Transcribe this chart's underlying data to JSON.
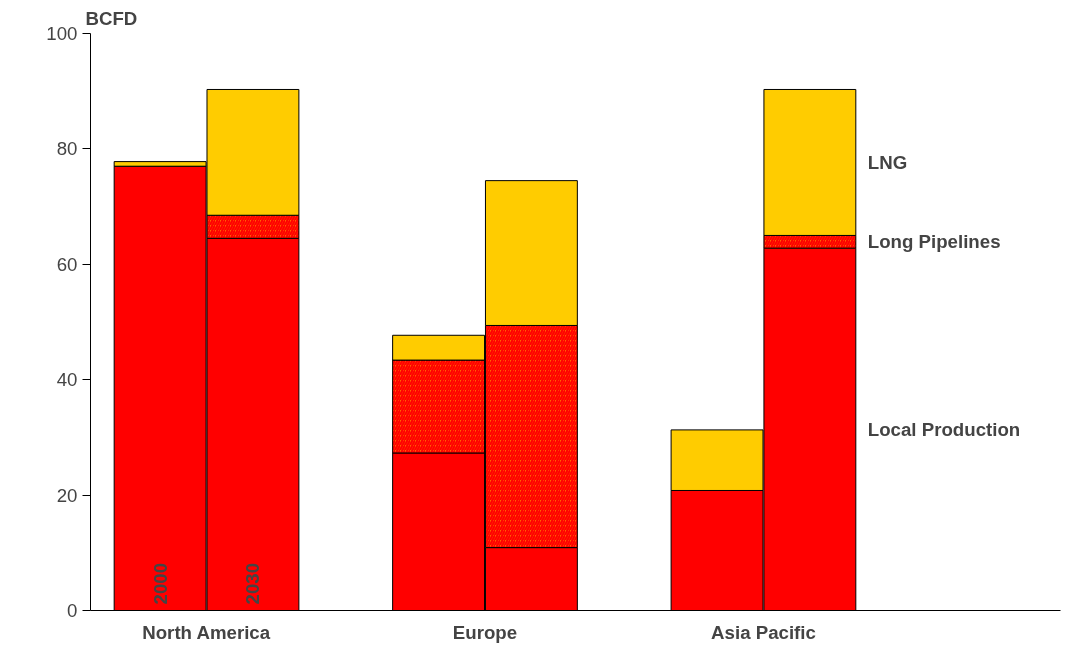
{
  "chart_data": {
    "type": "bar",
    "stacked": true,
    "ylabel": "BCFD",
    "categories": [
      null,
      null,
      null,
      null,
      null,
      null
    ],
    "series": [
      {
        "name": "Local Production",
        "color": "#ff0000",
        "values": [
          77.0,
          64.5,
          27.3,
          10.9,
          20.8,
          62.8
        ]
      },
      {
        "name": "Long Pipelines",
        "color": "#ff6600",
        "values": [
          0,
          4.0,
          16.1,
          38.5,
          0,
          2.2
        ]
      },
      {
        "name": "LNG",
        "color": "#ffcc00",
        "values": [
          0.8,
          21.8,
          4.3,
          25.1,
          10.5,
          25.3
        ]
      }
    ],
    "annotations": [
      "North America",
      "Europe",
      "Asia Pacific",
      "2000",
      "2030"
    ],
    "ylim": [
      0,
      100
    ],
    "yticks": [
      0,
      20,
      40,
      60,
      80,
      100
    ],
    "grid": false
  }
}
